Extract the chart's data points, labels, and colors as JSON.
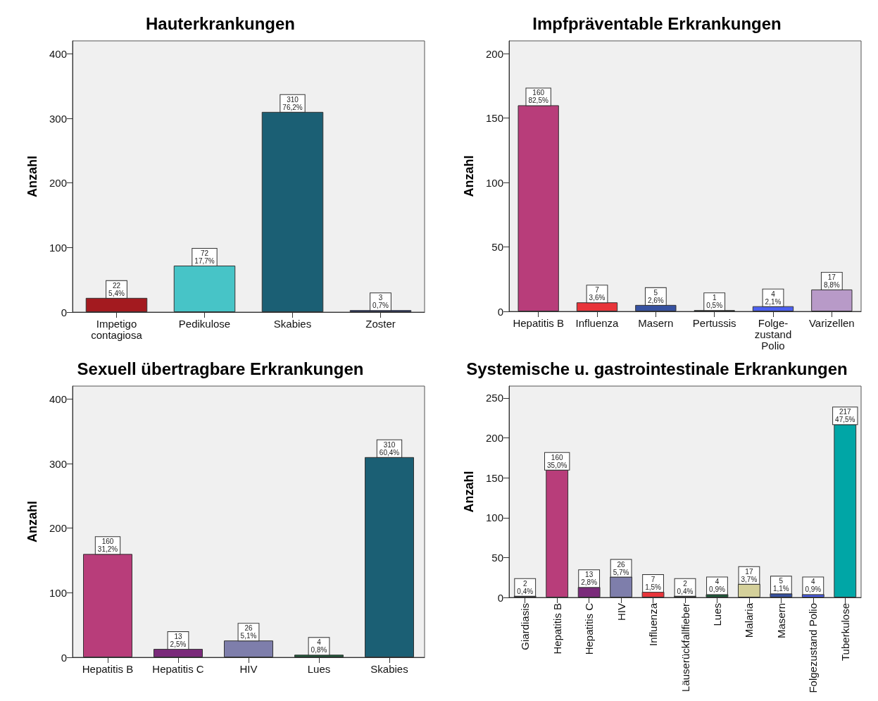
{
  "chart_data": [
    {
      "type": "bar",
      "title": "Hauterkrankungen",
      "ylabel": "Anzahl",
      "categories": [
        "Impetigo\ncontagiosa",
        "Pedikulose",
        "Skabies",
        "Zoster"
      ],
      "values": [
        22,
        72,
        310,
        3
      ],
      "colors": [
        "#a31a1f",
        "#47c4c7",
        "#1b5f74",
        "#26367a"
      ],
      "value_labels": [
        "22\n5,4%",
        "72\n17,7%",
        "310\n76,2%",
        "3\n0,7%"
      ],
      "ylim": [
        0,
        420
      ],
      "yticks": [
        0,
        100,
        200,
        300,
        400
      ],
      "grid": false
    },
    {
      "type": "bar",
      "title": "Impfpräventable Erkrankungen",
      "ylabel": "Anzahl",
      "categories": [
        "Hepatitis B",
        "Influenza",
        "Masern",
        "Pertussis",
        "Folge-\nzustand\nPolio",
        "Varizellen"
      ],
      "values": [
        160,
        7,
        5,
        1,
        4,
        17
      ],
      "colors": [
        "#b83d7a",
        "#e8343a",
        "#3651a0",
        "#1c5c3a",
        "#4b5ff0",
        "#b89ac8"
      ],
      "value_labels": [
        "160\n82,5%",
        "7\n3,6%",
        "5\n2,6%",
        "1\n0,5%",
        "4\n2,1%",
        "17\n8,8%"
      ],
      "ylim": [
        0,
        210
      ],
      "yticks": [
        0,
        50,
        100,
        150,
        200
      ],
      "grid": false
    },
    {
      "type": "bar",
      "title": "Sexuell übertragbare Erkrankungen",
      "ylabel": "Anzahl",
      "categories": [
        "Hepatitis B",
        "Hepatitis C",
        "HIV",
        "Lues",
        "Skabies"
      ],
      "values": [
        160,
        13,
        26,
        4,
        310
      ],
      "colors": [
        "#b83d7a",
        "#7a2a7a",
        "#7e7eab",
        "#1c5c3a",
        "#1b5f74"
      ],
      "value_labels": [
        "160\n31,2%",
        "13\n2,5%",
        "26\n5,1%",
        "4\n0,8%",
        "310\n60,4%"
      ],
      "ylim": [
        0,
        420
      ],
      "yticks": [
        0,
        100,
        200,
        300,
        400
      ],
      "grid": false
    },
    {
      "type": "bar",
      "title": "Systemische u. gastrointestinale Erkrankungen",
      "ylabel": "Anzahl",
      "categories": [
        "Giardiasis",
        "Hepatitis B",
        "Hepatitis C",
        "HIV",
        "Influenza",
        "Läuserückfallfieber",
        "Lues",
        "Malaria",
        "Masern",
        "Folgezustand Polio",
        "Tuberkulose"
      ],
      "values": [
        2,
        160,
        13,
        26,
        7,
        2,
        4,
        17,
        5,
        4,
        217
      ],
      "colors": [
        "#2d3a80",
        "#b83d7a",
        "#7a2a7a",
        "#7e7eab",
        "#e8343a",
        "#1c5c3a",
        "#1c5c3a",
        "#d4d09a",
        "#3651a0",
        "#4b5ff0",
        "#00a6a6"
      ],
      "value_labels": [
        "2\n0,4%",
        "160\n35,0%",
        "13\n2,8%",
        "26\n5,7%",
        "7\n1,5%",
        "2\n0,4%",
        "4\n0,9%",
        "17\n3,7%",
        "5\n1,1%",
        "4\n0,9%",
        "217\n47,5%"
      ],
      "ylim": [
        0,
        265
      ],
      "yticks": [
        0,
        50,
        100,
        150,
        200,
        250
      ],
      "grid": false
    }
  ]
}
